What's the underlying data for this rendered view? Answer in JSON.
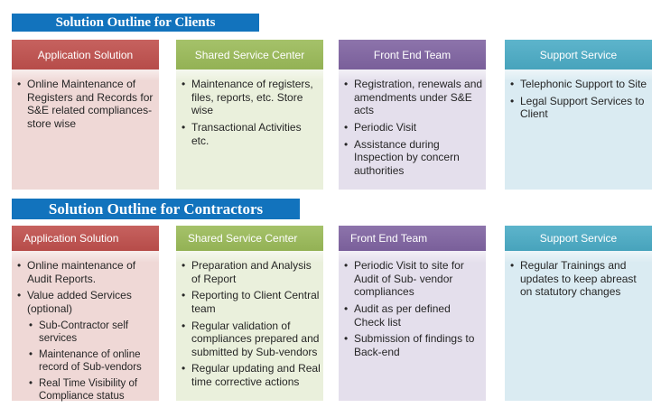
{
  "colors": {
    "titlebar": {
      "header": "#1273BD",
      "text": "#FFFFFF"
    },
    "red": {
      "header": "#C0504D",
      "body": "#EFD8D6"
    },
    "green": {
      "header": "#9BBB59",
      "body": "#EAF0DC"
    },
    "purple": {
      "header": "#8064A2",
      "body": "#E4DFEC"
    },
    "teal": {
      "header": "#4BACC6",
      "body": "#DAEBF2"
    }
  },
  "sections": [
    {
      "title": "Solution Outline for Clients",
      "columns": [
        {
          "header": "Application Solution",
          "theme": "red",
          "items": [
            {
              "text": "Online Maintenance of Registers and Records for S&E related compliances- store wise",
              "level": 1
            }
          ]
        },
        {
          "header": "Shared Service Center",
          "theme": "green",
          "items": [
            {
              "text": "Maintenance of registers, files, reports, etc. Store wise",
              "level": 1
            },
            {
              "text": "Transactional Activities etc.",
              "level": 1
            }
          ]
        },
        {
          "header": "Front End Team",
          "theme": "purple",
          "items": [
            {
              "text": "Registration, renewals and amendments under S&E acts",
              "level": 1
            },
            {
              "text": "Periodic Visit",
              "level": 1
            },
            {
              "text": "Assistance during Inspection by concern authorities",
              "level": 1
            }
          ]
        },
        {
          "header": "Support Service",
          "theme": "teal",
          "items": [
            {
              "text": "Telephonic Support to Site",
              "level": 1
            },
            {
              "text": "Legal Support Services to Client",
              "level": 1
            }
          ]
        }
      ]
    },
    {
      "title": "Solution Outline for Contractors",
      "columns": [
        {
          "header": "Application Solution",
          "theme": "red",
          "items": [
            {
              "text": "Online maintenance of Audit Reports.",
              "level": 1
            },
            {
              "text": "Value added Services (optional)",
              "level": 1
            },
            {
              "text": "Sub-Contractor self services",
              "level": 2
            },
            {
              "text": "Maintenance of online record of Sub-vendors",
              "level": 2
            },
            {
              "text": "Real Time Visibility of Compliance status",
              "level": 2
            }
          ]
        },
        {
          "header": "Shared Service Center",
          "theme": "green",
          "items": [
            {
              "text": "Preparation and Analysis of Report",
              "level": 1
            },
            {
              "text": "Reporting to Client Central team",
              "level": 1
            },
            {
              "text": "Regular validation of compliances prepared and submitted by Sub-vendors",
              "level": 1
            },
            {
              "text": "Regular updating and Real time corrective actions",
              "level": 1
            }
          ]
        },
        {
          "header": "Front End Team",
          "theme": "purple",
          "items": [
            {
              "text": "Periodic Visit to site for Audit of Sub- vendor compliances",
              "level": 1
            },
            {
              "text": "Audit as per defined Check list",
              "level": 1
            },
            {
              "text": "Submission of findings to Back-end",
              "level": 1
            }
          ]
        },
        {
          "header": "Support Service",
          "theme": "teal",
          "items": [
            {
              "text": "Regular Trainings and updates to keep abreast on statutory changes",
              "level": 1
            }
          ]
        }
      ]
    }
  ]
}
